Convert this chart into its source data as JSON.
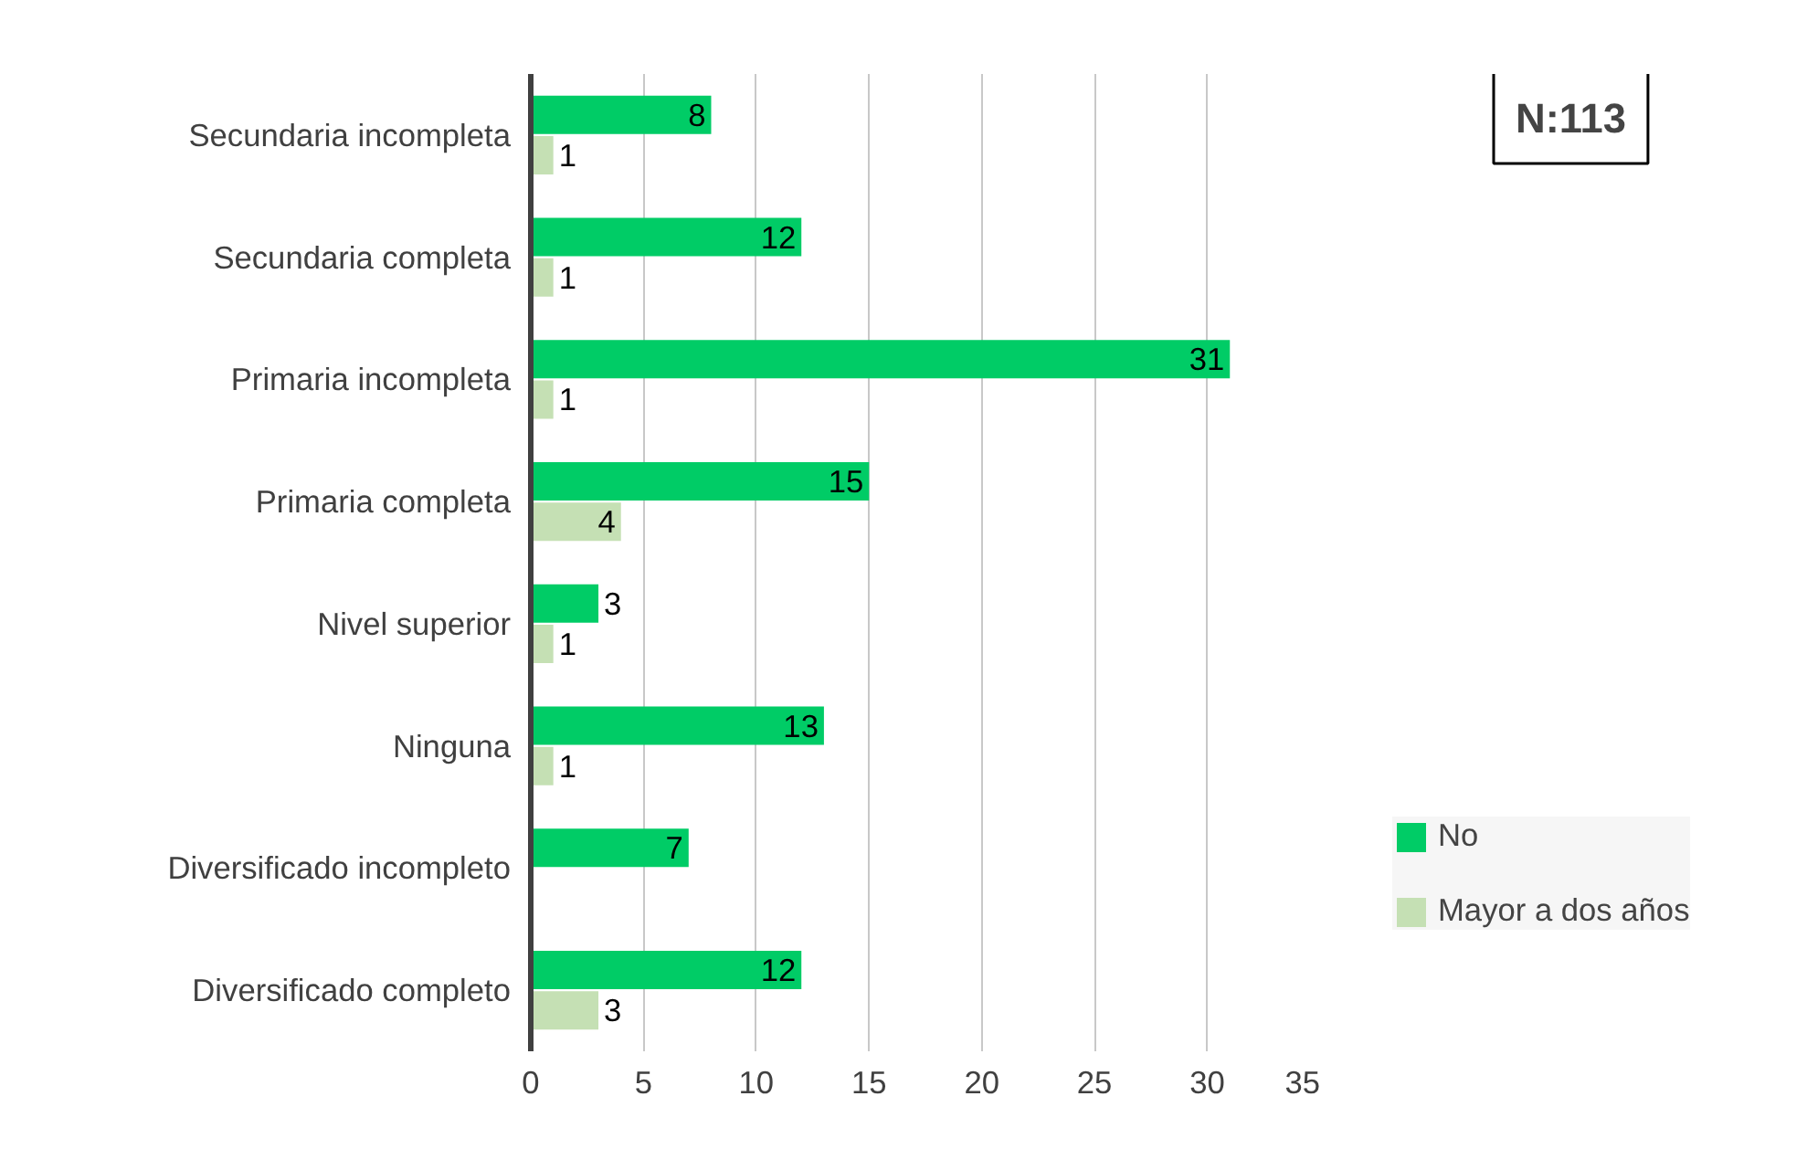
{
  "chart_data": {
    "type": "bar",
    "orientation": "horizontal",
    "categories": [
      "Secundaria incompleta",
      "Secundaria completa",
      "Primaria incompleta",
      "Primaria completa",
      "Nivel superior",
      "Ninguna",
      "Diversificado incompleto",
      "Diversificado completo"
    ],
    "series": [
      {
        "name": "No",
        "color": "#00cc66",
        "values": [
          8,
          12,
          31,
          15,
          3,
          13,
          7,
          12
        ]
      },
      {
        "name": "Mayor a dos años",
        "color": "#c5e0b4",
        "values": [
          1,
          1,
          1,
          4,
          1,
          1,
          null,
          3
        ]
      }
    ],
    "xlim": [
      0,
      35
    ],
    "xticks": [
      0,
      5,
      10,
      15,
      20,
      25,
      30,
      35
    ],
    "grid": "x",
    "legend": "right",
    "data_labels": true,
    "annotations": [
      "N:113"
    ]
  }
}
